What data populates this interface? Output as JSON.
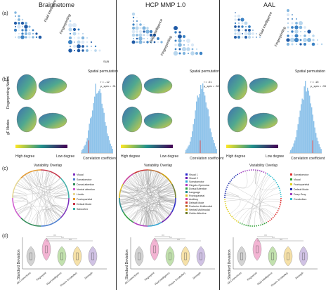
{
  "columns": [
    {
      "title": "Brainnetome"
    },
    {
      "title": "HCP MMP 1.0"
    },
    {
      "title": "AAL"
    }
  ],
  "panels": {
    "a": "(a)",
    "b": "(b)",
    "c": "(c)",
    "d": "(d)"
  },
  "row_a": {
    "labels": [
      "Fluid Intelligence",
      "Fingerprinting"
    ],
    "sub_label": "SUB"
  },
  "row_b": {
    "spatial_title": "Spatial permutation",
    "ylabels": [
      "Fingerprinting Nodes",
      "gF Nodes"
    ],
    "legend_high": "High degree",
    "legend_low": "Low degree",
    "xlabel": "Correlation coefficient",
    "ticks": [
      "-0.2",
      "-0.1",
      "0",
      "0.1",
      "0.2"
    ],
    "stats": [
      {
        "r": "r = -.12",
        "p": "p_spin = .91"
      },
      {
        "r": "r = .01",
        "p": "p_spin = .52"
      },
      {
        "r": "r = .15",
        "p": "p_spin = .03"
      }
    ]
  },
  "row_c": {
    "title": "Variability Overlap",
    "legends": [
      {
        "items": [
          {
            "label": "Visual",
            "color": "#7b2fbf"
          },
          {
            "label": "Somatomotor",
            "color": "#4a7fd4"
          },
          {
            "label": "Dorsal attention",
            "color": "#2e8b57"
          },
          {
            "label": "Ventral attention",
            "color": "#d058d0"
          },
          {
            "label": "Limbic",
            "color": "#e8d890"
          },
          {
            "label": "Frontoparietal",
            "color": "#e89a2a"
          },
          {
            "label": "Default Mode",
            "color": "#c8364a"
          },
          {
            "label": "Subcortex",
            "color": "#3ab0a8"
          }
        ]
      },
      {
        "items": [
          {
            "label": "Visual 1",
            "color": "#2222cc"
          },
          {
            "label": "Visual 2",
            "color": "#6a1ab0"
          },
          {
            "label": "Somatomotor",
            "color": "#2aa6d8"
          },
          {
            "label": "Cingulo-Opercular",
            "color": "#b03ac0"
          },
          {
            "label": "Dorsal Attention",
            "color": "#2ea040"
          },
          {
            "label": "Language",
            "color": "#1a8a8a"
          },
          {
            "label": "Frontoparietal",
            "color": "#e0c020"
          },
          {
            "label": "Auditory",
            "color": "#d040a0"
          },
          {
            "label": "Default Mode",
            "color": "#d03030"
          },
          {
            "label": "Posterior-Multimodal",
            "color": "#c07030"
          },
          {
            "label": "Ventral Multimodal",
            "color": "#d0a000"
          },
          {
            "label": "Orbito-Affective",
            "color": "#6a7a20"
          }
        ]
      },
      {
        "items": [
          {
            "label": "Somatomotor",
            "color": "#e03030"
          },
          {
            "label": "Visual",
            "color": "#2aa030"
          },
          {
            "label": "Frontoparietal",
            "color": "#e0d020"
          },
          {
            "label": "Default Mode",
            "color": "#2030b0"
          },
          {
            "label": "Deep Gray",
            "color": "#a040c0"
          },
          {
            "label": "Cerebellum",
            "color": "#30c0d0"
          }
        ]
      }
    ]
  },
  "row_d": {
    "ylabel": "Standard Deviation",
    "categories": [
      "All Connections",
      "Fingerprint",
      "Fluid Intelligence",
      "Picture Vocabulary",
      "Strength"
    ],
    "stars": [
      "***",
      "***",
      "***"
    ]
  },
  "colors": {
    "fingerprint": "#f2a8cc",
    "fluid": "#b8dca0",
    "vocab": "#f5dc9a",
    "strength": "#c8b8e0",
    "allconn": "#cccccc",
    "hist": "#8ec3ea"
  }
}
